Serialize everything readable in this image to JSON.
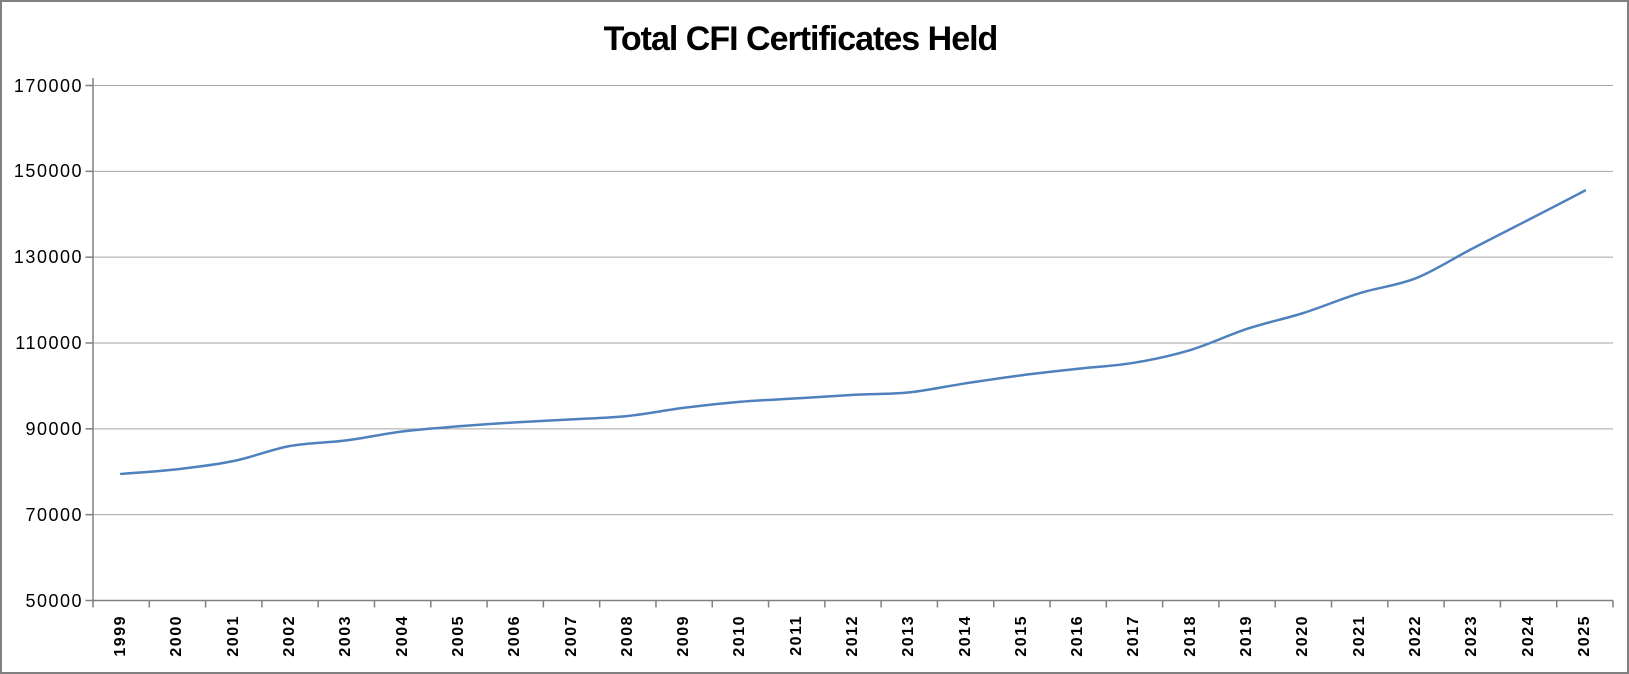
{
  "chart_data": {
    "type": "line",
    "title": "Total CFI Certificates Held",
    "categories": [
      "1999",
      "2000",
      "2001",
      "2002",
      "2003",
      "2004",
      "2005",
      "2006",
      "2007",
      "2008",
      "2009",
      "2010",
      "2011",
      "2012",
      "2013",
      "2014",
      "2015",
      "2016",
      "2017",
      "2018",
      "2019",
      "2020",
      "2021",
      "2022",
      "2023",
      "2024",
      "2025"
    ],
    "values": [
      79500,
      80600,
      82500,
      86000,
      87300,
      89400,
      90600,
      91500,
      92200,
      93000,
      94900,
      96300,
      97100,
      97900,
      98500,
      100600,
      102500,
      104000,
      105400,
      108400,
      113300,
      117000,
      121600,
      125100,
      132000,
      138700,
      145500
    ],
    "xlabel": "",
    "ylabel": "",
    "ylim": [
      50000,
      170000
    ],
    "ytick_step": 20000,
    "ytick_labels": [
      "50000",
      "70000",
      "90000",
      "110000",
      "130000",
      "150000",
      "170000"
    ],
    "grid": "horizontal-only",
    "legend_position": "none",
    "line_smoothed": true,
    "colors": {
      "line": "#4F81BD",
      "gridline": "#A6A6A6",
      "axis": "#808080",
      "text": "#000000",
      "background": "#FFFFFF",
      "border": "#808080"
    }
  }
}
